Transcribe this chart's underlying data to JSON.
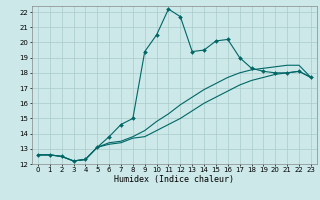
{
  "xlabel": "Humidex (Indice chaleur)",
  "background_color": "#cce8e8",
  "grid_color": "#aacccc",
  "line_color": "#006666",
  "xlim": [
    -0.5,
    23.5
  ],
  "ylim": [
    12,
    22.4
  ],
  "xticks": [
    0,
    1,
    2,
    3,
    4,
    5,
    6,
    7,
    8,
    9,
    10,
    11,
    12,
    13,
    14,
    15,
    16,
    17,
    18,
    19,
    20,
    21,
    22,
    23
  ],
  "yticks": [
    12,
    13,
    14,
    15,
    16,
    17,
    18,
    19,
    20,
    21,
    22
  ],
  "line1_x": [
    0,
    1,
    2,
    3,
    4,
    5,
    6,
    7,
    8,
    9,
    10,
    11,
    12,
    13,
    14,
    15,
    16,
    17,
    18,
    19,
    20,
    21,
    22,
    23
  ],
  "line1_y": [
    12.6,
    12.6,
    12.5,
    12.2,
    12.3,
    13.1,
    13.8,
    14.6,
    15.0,
    19.4,
    20.5,
    22.2,
    21.7,
    19.4,
    19.5,
    20.1,
    20.2,
    19.0,
    18.3,
    18.1,
    18.0,
    18.0,
    18.1,
    17.7
  ],
  "line2_x": [
    0,
    1,
    2,
    3,
    4,
    5,
    6,
    7,
    8,
    9,
    10,
    11,
    12,
    13,
    14,
    15,
    16,
    17,
    18,
    19,
    20,
    21,
    22,
    23
  ],
  "line2_y": [
    12.6,
    12.6,
    12.5,
    12.2,
    12.3,
    13.1,
    13.3,
    13.4,
    13.7,
    13.8,
    14.2,
    14.6,
    15.0,
    15.5,
    16.0,
    16.4,
    16.8,
    17.2,
    17.5,
    17.7,
    17.9,
    18.0,
    18.1,
    17.7
  ],
  "line3_x": [
    0,
    1,
    2,
    3,
    4,
    5,
    6,
    7,
    8,
    9,
    10,
    11,
    12,
    13,
    14,
    15,
    16,
    17,
    18,
    19,
    20,
    21,
    22,
    23
  ],
  "line3_y": [
    12.6,
    12.6,
    12.5,
    12.2,
    12.3,
    13.1,
    13.4,
    13.5,
    13.8,
    14.2,
    14.8,
    15.3,
    15.9,
    16.4,
    16.9,
    17.3,
    17.7,
    18.0,
    18.2,
    18.3,
    18.4,
    18.5,
    18.5,
    17.7
  ],
  "xlabel_fontsize": 6,
  "tick_fontsize": 5
}
